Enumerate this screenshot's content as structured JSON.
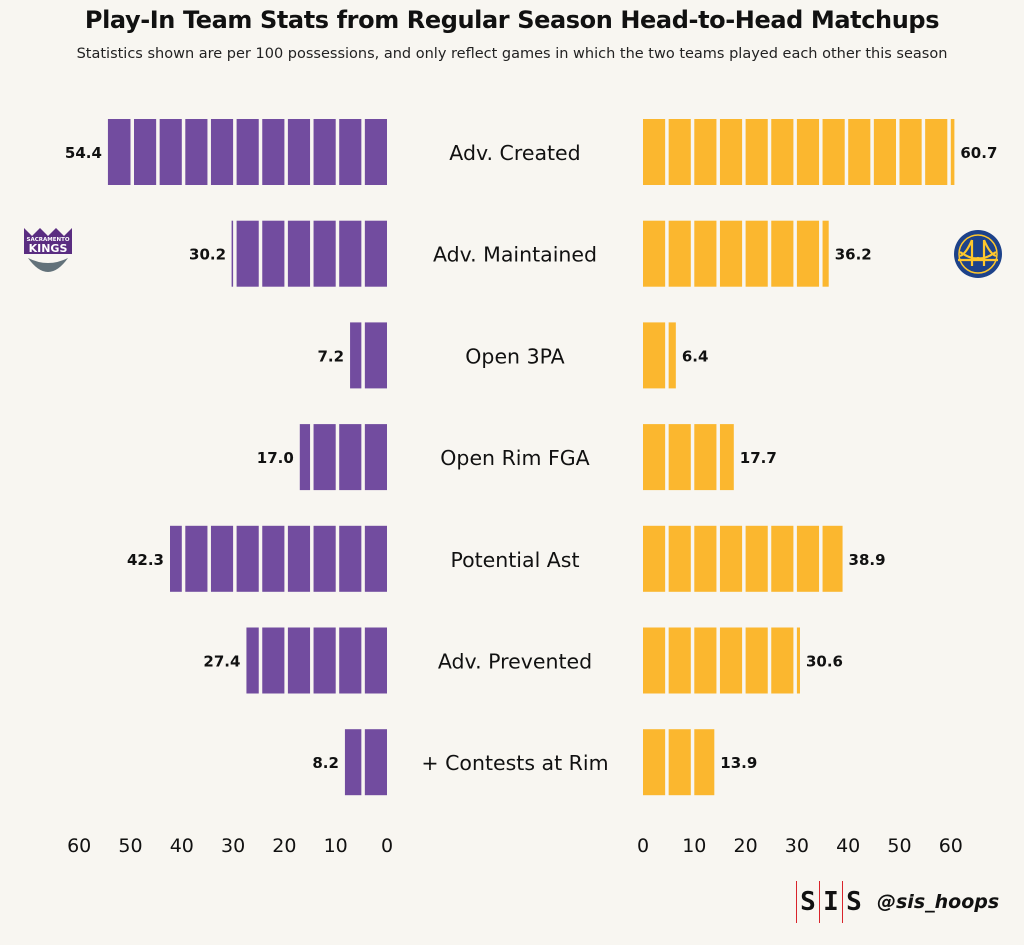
{
  "chart_data": {
    "type": "bar",
    "layout": "diverging-horizontal",
    "title": "Play-In Team Stats from Regular Season Head-to-Head Matchups",
    "subtitle": "Statistics shown are per 100 possessions, and only reflect games in which the two teams played each other this season",
    "categories": [
      "Adv. Created",
      "Adv. Maintained",
      "Open 3PA",
      "Open Rim FGA",
      "Potential Ast",
      "Adv. Prevented",
      "+ Contests at Rim"
    ],
    "series": [
      {
        "name": "Sacramento Kings",
        "side": "left",
        "color": "#724c9f",
        "values": [
          54.4,
          30.2,
          7.2,
          17.0,
          42.3,
          27.4,
          8.2
        ],
        "labels": [
          "54.4",
          "30.2",
          "7.2",
          "17.0",
          "42.3",
          "27.4",
          "8.2"
        ]
      },
      {
        "name": "Golden State Warriors",
        "side": "right",
        "color": "#fbb72f",
        "values": [
          60.7,
          36.2,
          6.4,
          17.7,
          38.9,
          30.6,
          13.9
        ],
        "labels": [
          "60.7",
          "36.2",
          "6.4",
          "17.7",
          "38.9",
          "30.6",
          "13.9"
        ]
      }
    ],
    "left_ticks": [
      "60",
      "50",
      "40",
      "30",
      "20",
      "10",
      "0"
    ],
    "right_ticks": [
      "0",
      "10",
      "20",
      "30",
      "40",
      "50",
      "60"
    ],
    "tick_values": [
      0,
      10,
      20,
      30,
      40,
      50,
      60
    ],
    "segment_size": 5,
    "xlim": [
      0,
      60
    ],
    "grid": false
  },
  "logos": {
    "left_text_top": "SACRAMENTO",
    "left_text_main": "KINGS",
    "left_color": "#5a2d81",
    "left_ball_color": "#63727a",
    "right_color": "#1d428a",
    "right_accent": "#ffc72c"
  },
  "footer": {
    "letters": [
      "S",
      "I",
      "S"
    ],
    "handle": "@sis_hoops"
  }
}
